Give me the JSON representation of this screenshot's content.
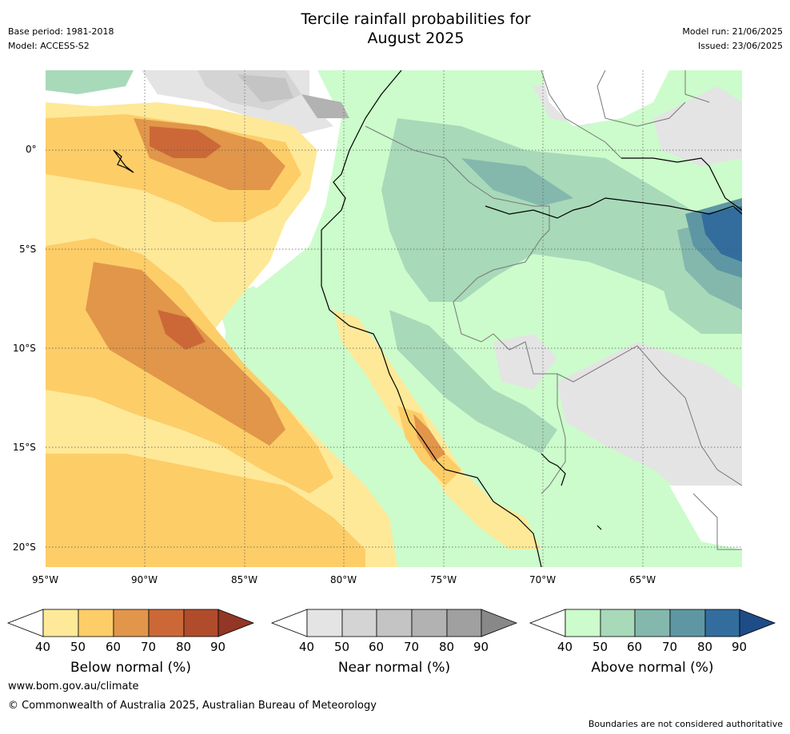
{
  "header": {
    "title_line1": "Tercile rainfall probabilities for",
    "title_line2": "August 2025",
    "base_period": "Base period: 1981-2018",
    "model": "Model: ACCESS-S2",
    "model_run": "Model run: 21/06/2025",
    "issued": "Issued: 23/06/2025"
  },
  "map": {
    "lat_labels": [
      "0°",
      "5°S",
      "10°S",
      "15°S",
      "20°S"
    ],
    "lon_labels": [
      "95°W",
      "90°W",
      "85°W",
      "80°W",
      "75°W",
      "70°W",
      "65°W"
    ],
    "lon_range": [
      -95,
      -60
    ],
    "lat_range": [
      -21,
      4
    ],
    "gridlines": true
  },
  "colorbars": [
    {
      "label": "Below normal (%)",
      "ticks": [
        "40",
        "50",
        "60",
        "70",
        "80",
        "90"
      ],
      "colors": [
        "#fee999",
        "#fdcd68",
        "#e1964a",
        "#cc6837",
        "#b04c2b",
        "#923625"
      ]
    },
    {
      "label": "Near normal (%)",
      "ticks": [
        "40",
        "50",
        "60",
        "70",
        "80",
        "90"
      ],
      "colors": [
        "#e4e4e4",
        "#d4d4d4",
        "#c4c4c4",
        "#b2b2b2",
        "#a0a0a0",
        "#888888"
      ]
    },
    {
      "label": "Above normal (%)",
      "ticks": [
        "40",
        "50",
        "60",
        "70",
        "80",
        "90"
      ],
      "colors": [
        "#ccfccb",
        "#a8d9b9",
        "#84b8ad",
        "#5e97a3",
        "#326d9d",
        "#1e4c86"
      ]
    }
  ],
  "footer": {
    "url": "www.bom.gov.au/climate",
    "copyright": "© Commonwealth of Australia 2025, Australian Bureau of Meteorology",
    "disclaimer": "Boundaries are not considered authoritative"
  }
}
